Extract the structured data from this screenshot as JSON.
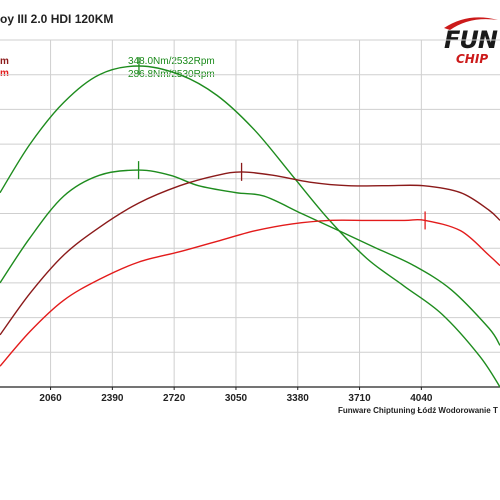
{
  "header": {
    "title": "oy III 2.0 HDI 120KM",
    "legend_stub_1": "m",
    "legend_stub_2": "m"
  },
  "logo": {
    "main": "FUN",
    "sub": "CHIP"
  },
  "footer": "Funware Chiptuning Łódź Wodorowanie T",
  "colors": {
    "tuned_torque": "#1e8c1e",
    "stock_torque": "#1e8c1e",
    "tuned_power": "#8b1a1a",
    "stock_power": "#e31b1b",
    "grid": "#cfcfcf",
    "axis": "#222222"
  },
  "chart_data": {
    "type": "line",
    "x_ticks": [
      2060,
      2390,
      2720,
      3050,
      3380,
      3710,
      4040
    ],
    "xlim": [
      1790,
      4460
    ],
    "grid": true,
    "peak_labels": [
      "348.0Nm/2532Rpm",
      "286.8Nm/2530Rpm"
    ],
    "series": [
      {
        "key": "tuned_torque",
        "x": [
          1790,
          1950,
          2130,
          2320,
          2532,
          2750,
          2950,
          3150,
          3350,
          3550,
          3750,
          3950,
          4150,
          4350,
          4460
        ],
        "y": [
          0.56,
          0.7,
          0.82,
          0.9,
          0.925,
          0.9,
          0.84,
          0.74,
          0.61,
          0.48,
          0.37,
          0.29,
          0.21,
          0.09,
          0.0
        ]
      },
      {
        "key": "stock_torque",
        "x": [
          1790,
          1950,
          2130,
          2320,
          2530,
          2700,
          2850,
          3050,
          3200,
          3400,
          3600,
          3800,
          4000,
          4200,
          4400,
          4460
        ],
        "y": [
          0.3,
          0.43,
          0.55,
          0.61,
          0.625,
          0.61,
          0.58,
          0.56,
          0.55,
          0.5,
          0.45,
          0.4,
          0.35,
          0.28,
          0.17,
          0.12
        ]
      },
      {
        "key": "tuned_power",
        "x": [
          1790,
          1950,
          2130,
          2320,
          2530,
          2750,
          2950,
          3080,
          3250,
          3450,
          3650,
          3850,
          4050,
          4250,
          4400,
          4460
        ],
        "y": [
          0.15,
          0.27,
          0.38,
          0.46,
          0.53,
          0.58,
          0.61,
          0.62,
          0.61,
          0.59,
          0.58,
          0.58,
          0.58,
          0.56,
          0.51,
          0.48
        ]
      },
      {
        "key": "stock_power",
        "x": [
          1790,
          1950,
          2130,
          2320,
          2530,
          2750,
          2950,
          3150,
          3350,
          3550,
          3750,
          3950,
          4060,
          4250,
          4400,
          4460
        ],
        "y": [
          0.06,
          0.16,
          0.25,
          0.31,
          0.36,
          0.39,
          0.42,
          0.45,
          0.47,
          0.48,
          0.48,
          0.48,
          0.48,
          0.45,
          0.38,
          0.35
        ]
      }
    ],
    "markers": [
      {
        "series": "tuned_torque",
        "x": 2532
      },
      {
        "series": "stock_torque",
        "x": 2530
      },
      {
        "series": "tuned_power",
        "x": 3080
      },
      {
        "series": "stock_power",
        "x": 4060
      }
    ]
  }
}
